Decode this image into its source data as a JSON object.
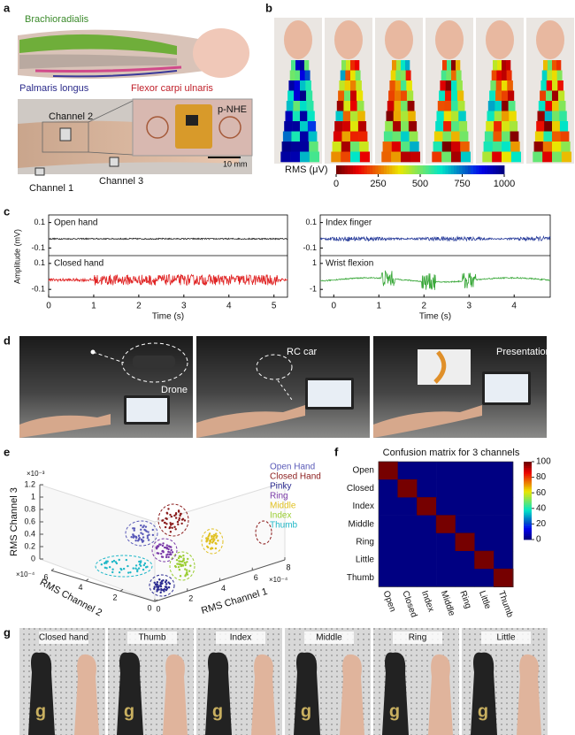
{
  "panels": {
    "a": {
      "label": "a",
      "muscles": [
        "Brachioradialis",
        "Palmaris longus",
        "Flexor carpi ulnaris"
      ],
      "channels": [
        "Channel 2",
        "Channel 1",
        "Channel 3"
      ],
      "device": "p-NHE",
      "scale": "10 mm"
    },
    "b": {
      "label": "b",
      "colorbar": {
        "title": "RMS (μV)",
        "lim": [
          0,
          1000
        ],
        "ticks": [
          0,
          250,
          500,
          750,
          1000
        ]
      }
    },
    "c": {
      "label": "c",
      "ylabel": "Amplitude (mV)",
      "xlabel": "Time (s)",
      "plots": [
        {
          "xlim": [
            0,
            5.3
          ],
          "xticks": [
            0,
            1,
            2,
            3,
            4,
            5
          ],
          "traces": [
            {
              "name": "Open hand",
              "color": "#222222",
              "ylim": [
                -0.16,
                0.16
              ],
              "yticks": [
                0.1,
                -0.1
              ]
            },
            {
              "name": "Closed hand",
              "color": "#e02424",
              "ylim": [
                -0.16,
                0.16
              ],
              "yticks": [
                0.1,
                -0.1
              ]
            }
          ]
        },
        {
          "xlim": [
            -0.3,
            4.8
          ],
          "xticks": [
            0,
            1,
            2,
            3,
            4
          ],
          "traces": [
            {
              "name": "Index finger",
              "color": "#2b3f9c",
              "ylim": [
                -0.16,
                0.16
              ],
              "yticks": [
                0.1,
                -0.1
              ]
            },
            {
              "name": "Wrist flexion",
              "color": "#3aa83a",
              "ylim": [
                -1.6,
                1.6
              ],
              "yticks": [
                1,
                -1
              ]
            }
          ]
        }
      ]
    },
    "d": {
      "label": "d",
      "targets": [
        "Drone",
        "RC car",
        "Presentation"
      ]
    },
    "e": {
      "label": "e",
      "zlabel": "RMS Channel 3",
      "ylabel": "RMS Channel 2",
      "xlabel": "RMS Channel 1",
      "zexp": "×10⁻³",
      "yexp": "×10⁻⁴",
      "xexp": "×10⁻⁴",
      "zlim": [
        0,
        1.2
      ],
      "zticks": [
        0,
        0.2,
        0.4,
        0.6,
        0.8,
        1,
        1.2
      ],
      "ylim": [
        0,
        6
      ],
      "yticks": [
        6,
        4,
        2,
        0
      ],
      "xlim": [
        0,
        8
      ],
      "xticks": [
        0,
        2,
        4,
        6,
        8
      ],
      "series": [
        {
          "name": "Open Hand",
          "color": "#5a5ab8"
        },
        {
          "name": "Closed Hand",
          "color": "#8a1a1a"
        },
        {
          "name": "Pinky",
          "color": "#2a2a90"
        },
        {
          "name": "Ring",
          "color": "#7a3aa8"
        },
        {
          "name": "Middle",
          "color": "#e0c020"
        },
        {
          "name": "Index",
          "color": "#9acd32"
        },
        {
          "name": "Thumb",
          "color": "#20b8c8"
        }
      ]
    },
    "f": {
      "label": "f",
      "title": "Confusion matrix for 3 channels",
      "classes": [
        "Open",
        "Closed",
        "Index",
        "Middle",
        "Ring",
        "Little",
        "Thumb"
      ],
      "matrix": [
        [
          100,
          0,
          0,
          0,
          0,
          0,
          0
        ],
        [
          0,
          100,
          0,
          0,
          0,
          0,
          0
        ],
        [
          0,
          0,
          100,
          0,
          0,
          0,
          0
        ],
        [
          0,
          0,
          0,
          100,
          0,
          0,
          0
        ],
        [
          0,
          0,
          0,
          0,
          100,
          0,
          0
        ],
        [
          0,
          0,
          0,
          0,
          0,
          100,
          0
        ],
        [
          0,
          0,
          0,
          0,
          0,
          0,
          100
        ]
      ],
      "clim": [
        0,
        100
      ],
      "cticks": [
        0,
        20,
        40,
        60,
        80,
        100
      ]
    },
    "g": {
      "label": "g",
      "gestures": [
        "Closed hand",
        "Thumb",
        "Index",
        "Middle",
        "Ring",
        "Little"
      ]
    }
  }
}
